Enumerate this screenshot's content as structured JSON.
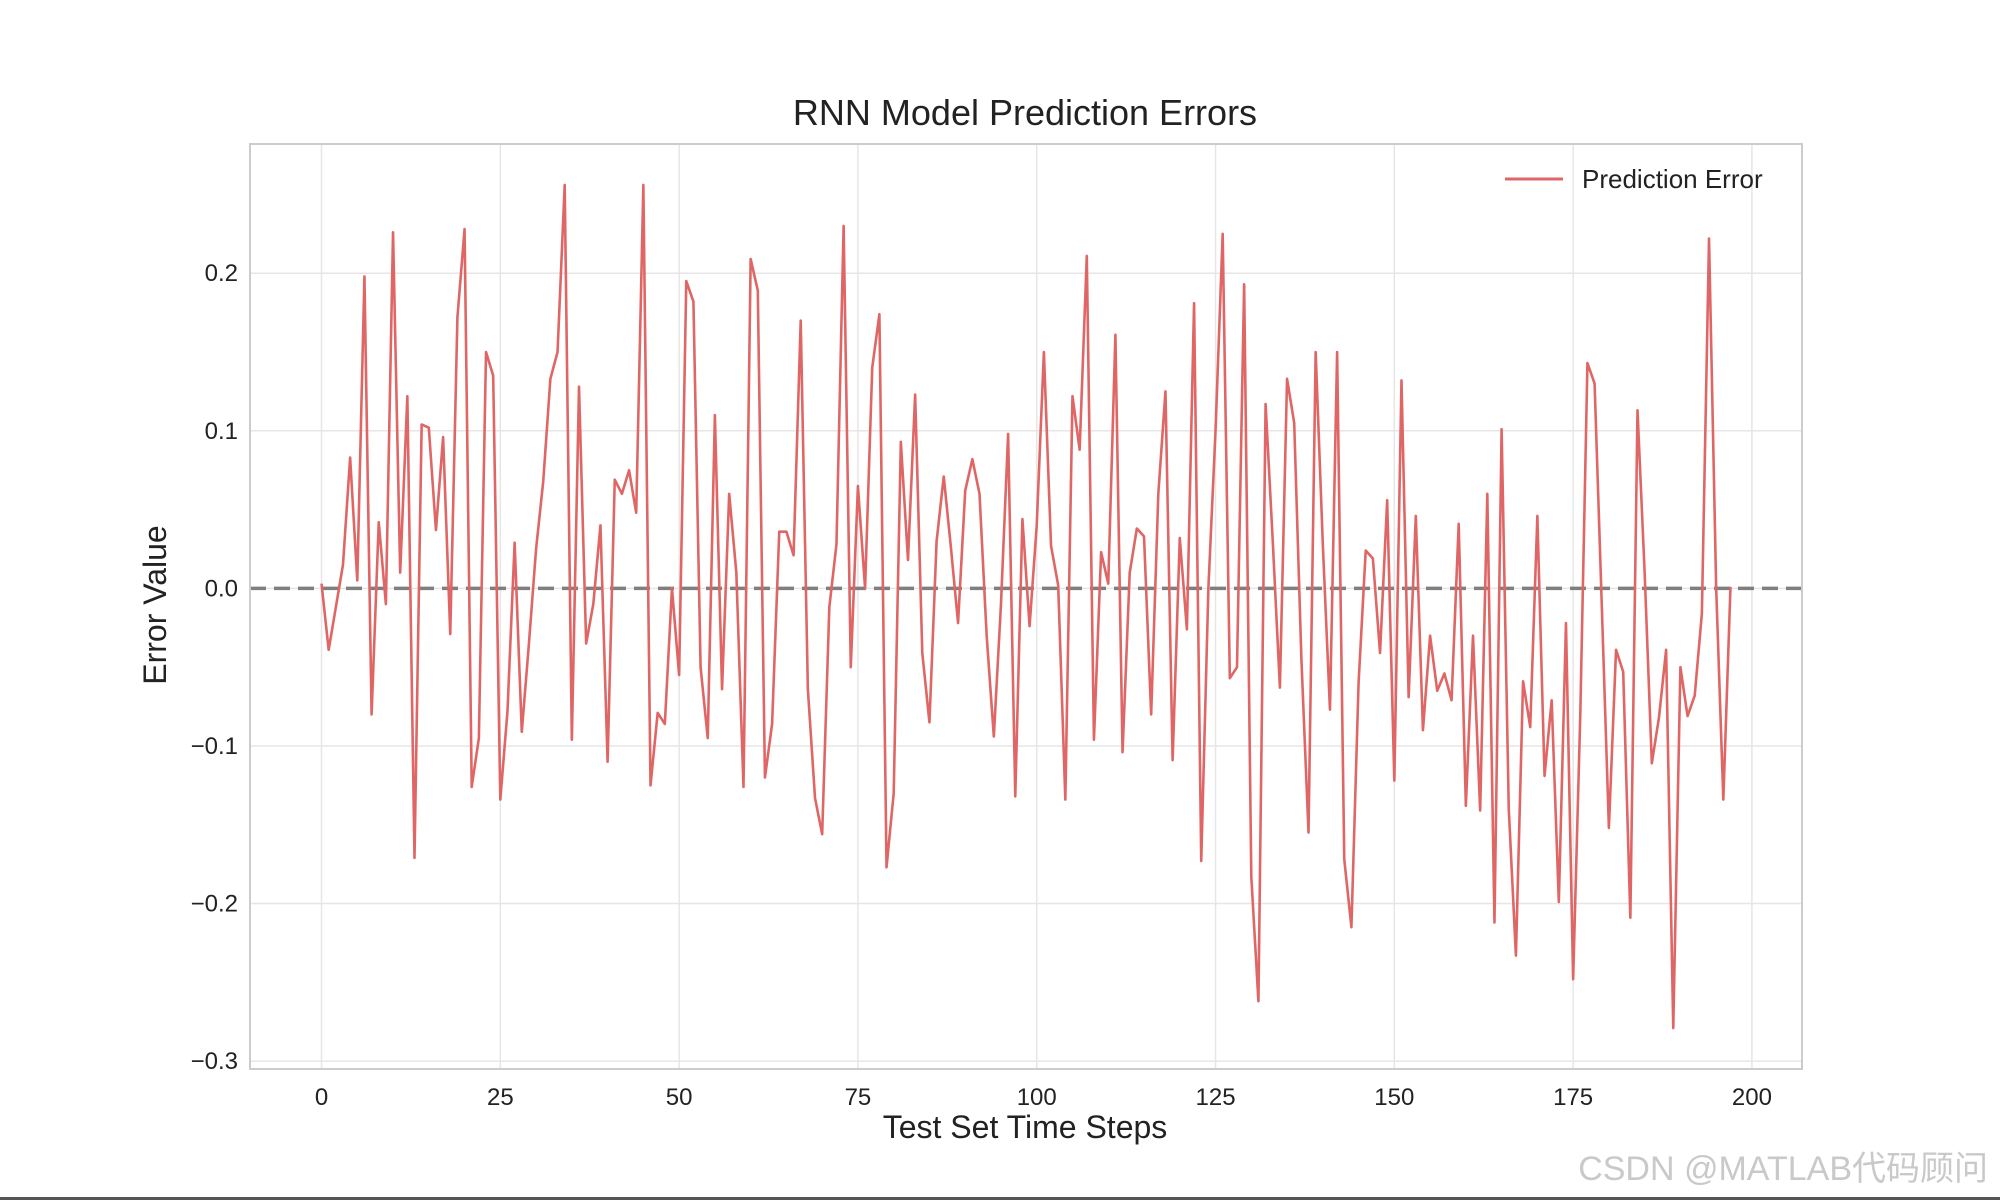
{
  "chart_data": {
    "type": "line",
    "title": "RNN Model Prediction Errors",
    "xlabel": "Test Set Time Steps",
    "ylabel": "Error Value",
    "xlim": [
      -10,
      207
    ],
    "ylim": [
      -0.305,
      0.282
    ],
    "xticks": [
      0,
      25,
      50,
      75,
      100,
      125,
      150,
      175,
      200
    ],
    "yticks": [
      -0.3,
      -0.2,
      -0.1,
      0.0,
      0.1,
      0.2
    ],
    "ytick_labels": [
      "−0.3",
      "−0.2",
      "−0.1",
      "0.0",
      "0.1",
      "0.2"
    ],
    "grid": true,
    "legend_position": "top-right",
    "reference_line": {
      "y": 0.0,
      "style": "dashed",
      "color": "#7f7f7f"
    },
    "series": [
      {
        "name": "Prediction Error",
        "color": "#e06666",
        "x_start": 0,
        "x_step": 1,
        "values": [
          0.003,
          -0.039,
          -0.012,
          0.015,
          0.083,
          0.005,
          0.198,
          -0.08,
          0.042,
          -0.01,
          0.226,
          0.01,
          0.122,
          -0.171,
          0.104,
          0.102,
          0.037,
          0.096,
          -0.029,
          0.172,
          0.228,
          -0.126,
          -0.095,
          0.15,
          0.135,
          -0.134,
          -0.078,
          0.029,
          -0.091,
          -0.035,
          0.025,
          0.068,
          0.133,
          0.15,
          0.256,
          -0.096,
          0.128,
          -0.035,
          -0.01,
          0.04,
          -0.11,
          0.069,
          0.06,
          0.075,
          0.048,
          0.256,
          -0.125,
          -0.079,
          -0.086,
          0.0,
          -0.055,
          0.195,
          0.182,
          -0.05,
          -0.095,
          0.11,
          -0.064,
          0.06,
          0.01,
          -0.126,
          0.209,
          0.189,
          -0.12,
          -0.086,
          0.036,
          0.036,
          0.021,
          0.17,
          -0.064,
          -0.133,
          -0.156,
          -0.012,
          0.028,
          0.23,
          -0.05,
          0.065,
          0.0,
          0.14,
          0.174,
          -0.177,
          -0.13,
          0.093,
          0.018,
          0.123,
          -0.041,
          -0.085,
          0.03,
          0.071,
          0.026,
          -0.022,
          0.062,
          0.082,
          0.06,
          -0.03,
          -0.094,
          -0.01,
          0.098,
          -0.132,
          0.044,
          -0.024,
          0.04,
          0.15,
          0.027,
          0.002,
          -0.134,
          0.122,
          0.088,
          0.211,
          -0.096,
          0.023,
          0.003,
          0.161,
          -0.104,
          0.01,
          0.038,
          0.033,
          -0.08,
          0.06,
          0.125,
          -0.109,
          0.032,
          -0.026,
          0.181,
          -0.173,
          0.0,
          0.1,
          0.225,
          -0.057,
          -0.05,
          0.193,
          -0.183,
          -0.262,
          0.117,
          0.03,
          -0.063,
          0.133,
          0.105,
          -0.044,
          -0.155,
          0.15,
          0.028,
          -0.077,
          0.15,
          -0.172,
          -0.215,
          -0.06,
          0.024,
          0.019,
          -0.041,
          0.056,
          -0.122,
          0.132,
          -0.069,
          0.046,
          -0.09,
          -0.03,
          -0.065,
          -0.054,
          -0.071,
          0.041,
          -0.138,
          -0.03,
          -0.141,
          0.06,
          -0.212,
          0.101,
          -0.14,
          -0.233,
          -0.059,
          -0.088,
          0.046,
          -0.119,
          -0.071,
          -0.199,
          -0.022,
          -0.248,
          -0.08,
          0.143,
          0.13,
          -0.01,
          -0.152,
          -0.039,
          -0.053,
          -0.209,
          0.113,
          0.01,
          -0.111,
          -0.082,
          -0.039,
          -0.279,
          -0.05,
          -0.081,
          -0.068,
          -0.016,
          0.222,
          0.0,
          -0.134,
          0.001
        ]
      }
    ]
  },
  "watermark": "CSDN @MATLAB代码顾问"
}
